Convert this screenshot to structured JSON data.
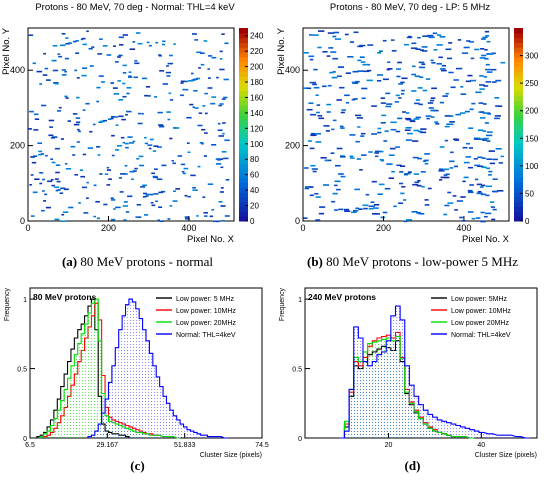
{
  "captions": [
    {
      "tag": "(a)",
      "text": "80 MeV protons - normal"
    },
    {
      "tag": "(b)",
      "text": "80 MeV protons - low-power 5 MHz"
    },
    {
      "tag": "(c)",
      "text": ""
    },
    {
      "tag": "(d)",
      "text": ""
    }
  ],
  "chart_data": [
    {
      "type": "heatmap",
      "title": "Protons - 80 MeV, 70 deg - Normal: THL=4 keV",
      "xlabel": "Pixel No. X",
      "ylabel": "Pixel No. Y",
      "xlim": [
        0,
        512
      ],
      "ylim": [
        0,
        512
      ],
      "xticks": [
        0,
        200,
        400
      ],
      "yticks": [
        0,
        200,
        400
      ],
      "color_scale": {
        "min": 0,
        "max": 250,
        "ticks": [
          0,
          20,
          40,
          60,
          80,
          100,
          120,
          140,
          160,
          180,
          200,
          220,
          240
        ]
      },
      "cluster_count": 390,
      "cluster_length": [
        6,
        14
      ],
      "seed": 7
    },
    {
      "type": "heatmap",
      "title": "Protons - 80 MeV, 70 deg - LP: 5 MHz",
      "xlabel": "Pixel No. X",
      "ylabel": "Pixel No. Y",
      "xlim": [
        0,
        512
      ],
      "ylim": [
        0,
        512
      ],
      "xticks": [
        0,
        200,
        400
      ],
      "yticks": [
        0,
        200,
        400
      ],
      "color_scale": {
        "min": 0,
        "max": 350,
        "ticks": [
          0,
          50,
          100,
          150,
          200,
          250,
          300
        ]
      },
      "cluster_count": 470,
      "cluster_length": [
        8,
        16
      ],
      "seed": 21
    },
    {
      "type": "line",
      "title": "80 MeV protons",
      "xlabel": "Cluster Size (pixels)",
      "ylabel": "Frequency",
      "xlim": [
        6.5,
        74.5
      ],
      "ylim": [
        0,
        1.08
      ],
      "xticks": [
        "6.5",
        "29.167",
        "51.833",
        "74.5"
      ],
      "yticks": [
        "0",
        "0.5",
        "1"
      ],
      "legend_position": "top-right",
      "series": [
        {
          "name": "Low power: 5 MHz",
          "color": "#000000",
          "x": [
            9,
            10,
            11,
            12,
            13,
            14,
            15,
            16,
            17,
            18,
            19,
            20,
            21,
            22,
            23,
            24,
            25,
            26,
            27,
            28,
            29,
            30,
            31,
            32,
            33,
            34,
            35,
            36
          ],
          "values": [
            0.01,
            0.02,
            0.04,
            0.08,
            0.13,
            0.2,
            0.28,
            0.37,
            0.46,
            0.55,
            0.64,
            0.72,
            0.78,
            0.82,
            0.88,
            0.95,
            1.0,
            0.78,
            0.3,
            0.1,
            0.05,
            0.04,
            0.03,
            0.03,
            0.02,
            0.02,
            0.01,
            0.0
          ]
        },
        {
          "name": "Low power: 10MHz",
          "color": "#ff0000",
          "x": [
            11,
            12,
            13,
            14,
            15,
            16,
            17,
            18,
            19,
            20,
            21,
            22,
            23,
            24,
            25,
            26,
            27,
            28,
            29,
            30,
            31,
            32,
            33,
            34,
            35,
            36,
            37,
            38,
            39,
            40,
            41,
            42,
            43,
            44,
            46,
            48,
            50
          ],
          "values": [
            0.01,
            0.02,
            0.04,
            0.07,
            0.11,
            0.16,
            0.22,
            0.3,
            0.38,
            0.46,
            0.55,
            0.63,
            0.72,
            0.8,
            0.88,
            0.97,
            0.85,
            0.45,
            0.22,
            0.15,
            0.13,
            0.12,
            0.11,
            0.1,
            0.09,
            0.08,
            0.07,
            0.06,
            0.05,
            0.04,
            0.03,
            0.03,
            0.02,
            0.02,
            0.01,
            0.01,
            0.0
          ]
        },
        {
          "name": "Low power: 20MHz",
          "color": "#00dd00",
          "x": [
            10,
            11,
            12,
            13,
            14,
            15,
            16,
            17,
            18,
            19,
            20,
            21,
            22,
            23,
            24,
            25,
            26,
            27,
            28,
            29,
            30,
            31,
            32,
            33,
            34,
            35,
            36,
            37,
            38,
            39,
            40,
            41,
            42,
            44,
            46,
            48,
            50
          ],
          "values": [
            0.01,
            0.03,
            0.05,
            0.09,
            0.14,
            0.2,
            0.27,
            0.35,
            0.43,
            0.52,
            0.6,
            0.68,
            0.75,
            0.82,
            0.9,
            0.97,
            1.0,
            0.7,
            0.32,
            0.16,
            0.12,
            0.11,
            0.1,
            0.09,
            0.08,
            0.07,
            0.06,
            0.05,
            0.04,
            0.04,
            0.03,
            0.03,
            0.02,
            0.02,
            0.01,
            0.01,
            0.0
          ]
        },
        {
          "name": "Normal: THL=4keV",
          "color": "#0000ff",
          "x": [
            24,
            25,
            26,
            27,
            28,
            29,
            30,
            31,
            32,
            33,
            34,
            35,
            36,
            37,
            38,
            39,
            40,
            41,
            42,
            43,
            44,
            45,
            46,
            47,
            48,
            49,
            50,
            51,
            52,
            53,
            54,
            55,
            56,
            57,
            58,
            59,
            60,
            62,
            64
          ],
          "values": [
            0.01,
            0.02,
            0.05,
            0.1,
            0.18,
            0.28,
            0.4,
            0.52,
            0.65,
            0.78,
            0.88,
            0.96,
            1.0,
            0.98,
            0.93,
            0.86,
            0.78,
            0.7,
            0.61,
            0.52,
            0.44,
            0.37,
            0.3,
            0.25,
            0.2,
            0.16,
            0.13,
            0.1,
            0.08,
            0.06,
            0.05,
            0.04,
            0.03,
            0.02,
            0.02,
            0.01,
            0.01,
            0.01,
            0.0
          ]
        }
      ]
    },
    {
      "type": "line",
      "title": "240 MeV protons",
      "xlabel": "Cluster Size (pixels)",
      "ylabel": "Frequency",
      "xlim": [
        2,
        52
      ],
      "ylim": [
        0,
        1.08
      ],
      "xticks": [
        "20",
        "40"
      ],
      "yticks": [
        "0",
        "0.5",
        "1"
      ],
      "legend_position": "top-right",
      "series": [
        {
          "name": "Low power: 5MHz",
          "color": "#000000",
          "x": [
            10,
            11,
            12,
            13,
            14,
            15,
            16,
            17,
            18,
            19,
            20,
            21,
            22,
            23,
            24,
            25,
            26,
            27,
            28,
            29,
            30,
            31,
            32,
            33,
            34,
            36,
            38
          ],
          "values": [
            0.0,
            0.08,
            0.3,
            0.52,
            0.5,
            0.55,
            0.6,
            0.62,
            0.64,
            0.66,
            0.65,
            0.63,
            0.7,
            0.55,
            0.32,
            0.24,
            0.18,
            0.14,
            0.1,
            0.07,
            0.05,
            0.04,
            0.03,
            0.02,
            0.01,
            0.01,
            0.0
          ]
        },
        {
          "name": "Low power: 10MHz",
          "color": "#ff0000",
          "x": [
            10,
            11,
            12,
            13,
            14,
            15,
            16,
            17,
            18,
            19,
            20,
            21,
            22,
            23,
            24,
            25,
            26,
            27,
            28,
            29,
            30,
            31,
            32,
            33,
            34,
            36,
            38
          ],
          "values": [
            0.0,
            0.1,
            0.33,
            0.55,
            0.52,
            0.58,
            0.66,
            0.7,
            0.72,
            0.73,
            0.74,
            0.72,
            0.76,
            0.58,
            0.35,
            0.26,
            0.2,
            0.15,
            0.11,
            0.08,
            0.06,
            0.04,
            0.03,
            0.02,
            0.01,
            0.01,
            0.0
          ]
        },
        {
          "name": "Low power 20MHz",
          "color": "#00dd00",
          "x": [
            10,
            11,
            12,
            13,
            14,
            15,
            16,
            17,
            18,
            19,
            20,
            21,
            22,
            23,
            24,
            25,
            26,
            27,
            28,
            29,
            30,
            31,
            32,
            33,
            34,
            36,
            38
          ],
          "values": [
            0.0,
            0.12,
            0.35,
            0.58,
            0.55,
            0.62,
            0.68,
            0.69,
            0.7,
            0.71,
            0.72,
            0.7,
            0.73,
            0.57,
            0.33,
            0.25,
            0.19,
            0.14,
            0.1,
            0.07,
            0.05,
            0.04,
            0.03,
            0.02,
            0.01,
            0.01,
            0.0
          ]
        },
        {
          "name": "Normal: THL=4keV",
          "color": "#0000ff",
          "x": [
            10,
            11,
            12,
            13,
            14,
            15,
            16,
            17,
            18,
            19,
            20,
            21,
            22,
            23,
            24,
            25,
            26,
            27,
            28,
            29,
            30,
            31,
            32,
            33,
            34,
            35,
            36,
            37,
            38,
            39,
            40,
            42,
            44,
            46,
            48,
            50
          ],
          "values": [
            0.0,
            0.05,
            0.35,
            0.8,
            0.72,
            0.55,
            0.52,
            0.55,
            0.6,
            0.62,
            0.7,
            0.88,
            0.95,
            0.85,
            0.52,
            0.38,
            0.3,
            0.24,
            0.2,
            0.17,
            0.15,
            0.13,
            0.12,
            0.11,
            0.1,
            0.09,
            0.08,
            0.07,
            0.06,
            0.05,
            0.04,
            0.03,
            0.02,
            0.02,
            0.01,
            0.0
          ]
        }
      ]
    }
  ]
}
